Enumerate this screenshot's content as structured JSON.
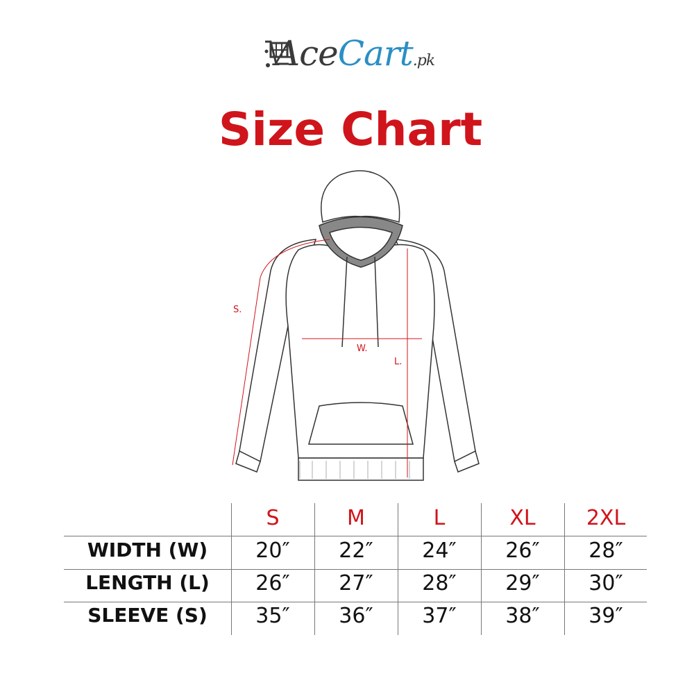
{
  "brand": {
    "name_part1": "Ace",
    "name_part2": "Cart",
    "suffix": ".pk",
    "colors": {
      "dark": "#3a3a3a",
      "blue": "#2a8fc4"
    }
  },
  "title": "Size Chart",
  "title_color": "#d0141b",
  "diagram": {
    "sleeve_label": "S.",
    "width_label": "W.",
    "length_label": "L."
  },
  "table": {
    "sizes": [
      "S",
      "M",
      "L",
      "XL",
      "2XL"
    ],
    "rows": [
      {
        "label": "WIDTH (W)",
        "values": [
          "20″",
          "22″",
          "24″",
          "26″",
          "28″"
        ]
      },
      {
        "label": "LENGTH (L)",
        "values": [
          "26″",
          "27″",
          "28″",
          "29″",
          "30″"
        ]
      },
      {
        "label": "SLEEVE (S)",
        "values": [
          "35″",
          "36″",
          "37″",
          "38″",
          "39″"
        ]
      }
    ]
  }
}
